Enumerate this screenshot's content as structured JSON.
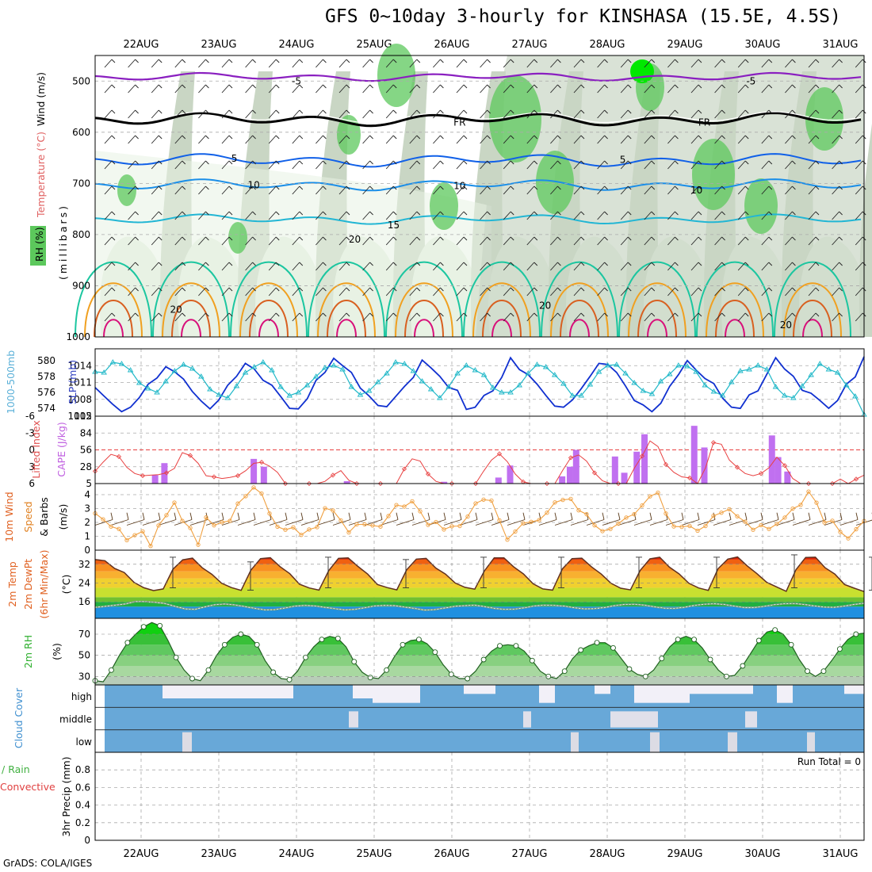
{
  "title": "GFS 0~10day 3-hourly for KINSHASA (15.5E, 4.5S)",
  "footer": "GrADS: COLA/IGES",
  "days": [
    "22AUG",
    "23AUG",
    "24AUG",
    "25AUG",
    "26AUG",
    "27AUG",
    "28AUG",
    "29AUG",
    "30AUG",
    "31AUG"
  ],
  "colors": {
    "rh_light": "#e8f2e4",
    "rh_mid": "#c9d6c4",
    "rh_green": "#5cc85c",
    "rh_bright": "#00e800",
    "t5": "#8a1fc0",
    "tfr": "#000000",
    "t_5": "#1060e8",
    "t10": "#1a8ee8",
    "t15": "#22b6d4",
    "t20": "#1cc6a0",
    "t25": "#f0a020",
    "t30": "#d86020",
    "t35": "#d8107a",
    "slp": "#1030d0",
    "thick": "#20b8c8",
    "li": "#e84040",
    "cape": "#c070f0",
    "wind": "#f0a040",
    "barb": "#5a3a1a",
    "cloud": "#68a8d8",
    "cloud_gap": "#f2f0f8",
    "rh2m": "#30c030"
  },
  "chart_data": [
    {
      "type": "heatmap",
      "name": "upper-air",
      "ylabel": "(millibars)",
      "legend": {
        "wind_label": "Wind (m/s)",
        "temp_label": "Temperature (°C)",
        "rh_label": "RH (%)"
      },
      "ylim": [
        1000,
        450
      ],
      "y_ticks": [
        "500",
        "600",
        "700",
        "800",
        "900",
        "1000"
      ],
      "contour_labels": [
        {
          "text": "-5",
          "day": 2.0,
          "p": 499
        },
        {
          "text": "-5",
          "day": 7.85,
          "p": 499
        },
        {
          "text": "FR",
          "day": 4.1,
          "p": 579
        },
        {
          "text": "FR",
          "day": 7.25,
          "p": 579
        },
        {
          "text": "5",
          "day": 1.2,
          "p": 650
        },
        {
          "text": "5",
          "day": 6.2,
          "p": 652
        },
        {
          "text": "10",
          "day": 1.45,
          "p": 702
        },
        {
          "text": "10",
          "day": 4.1,
          "p": 703
        },
        {
          "text": "10",
          "day": 7.15,
          "p": 712
        },
        {
          "text": "15",
          "day": 3.25,
          "p": 780
        },
        {
          "text": "20",
          "day": 2.75,
          "p": 808
        },
        {
          "text": "20",
          "day": 0.45,
          "p": 945
        },
        {
          "text": "20",
          "day": 5.2,
          "p": 937
        },
        {
          "text": "20",
          "day": 8.3,
          "p": 975
        }
      ]
    },
    {
      "type": "line",
      "name": "slp-thickness",
      "ylabel_left": "1000-500mb Thickness (dm)",
      "ylabel_right": "SLP (mb)",
      "left_ticks": [
        "574",
        "576",
        "578",
        "580"
      ],
      "right_ticks": [
        "1005",
        "1008",
        "1011",
        "1014"
      ],
      "ylim_slp": [
        1005,
        1017
      ],
      "ylim_thick": [
        573,
        581.5
      ],
      "series": [
        {
          "name": "SLP",
          "values": [
            1010.1,
            1008.6,
            1007.1,
            1005.8,
            1006.6,
            1008.3,
            1010.7,
            1011.8,
            1013.8,
            1012.9,
            1011.6,
            1009.4,
            1007.7,
            1006.3,
            1007.9,
            1010.5,
            1012.1,
            1014.4,
            1013.4,
            1011.4,
            1010.5,
            1008.5,
            1006.4,
            1006.3,
            1008.1,
            1011.4,
            1012.8,
            1015.3,
            1014.0,
            1012.8,
            1010.0,
            1008.6,
            1006.9,
            1006.7,
            1008.5,
            1010.3,
            1011.9,
            1015.0,
            1013.6,
            1012.1,
            1010.1,
            1009.6,
            1006.2,
            1006.6,
            1008.7,
            1009.5,
            1011.9,
            1015.4,
            1013.3,
            1012.4,
            1010.7,
            1008.7,
            1006.8,
            1006.6,
            1007.9,
            1009.9,
            1012.1,
            1014.4,
            1014.2,
            1012.8,
            1010.4,
            1007.8,
            1007.0,
            1005.8,
            1007.3,
            1010.3,
            1012.4,
            1014.9,
            1013.2,
            1011.7,
            1010.8,
            1008.2,
            1006.6,
            1006.4,
            1008.8,
            1009.5,
            1012.5,
            1015.4,
            1013.4,
            1012.1,
            1009.6,
            1009.1,
            1007.8,
            1006.4,
            1007.8,
            1010.7,
            1012.0,
            1015.6
          ]
        },
        {
          "name": "Thickness",
          "values": [
            578.6,
            578.5,
            579.8,
            579.6,
            578.8,
            577.2,
            576.5,
            576.0,
            577.4,
            578.7,
            579.5,
            579.0,
            578.0,
            576.4,
            575.7,
            575.3,
            576.8,
            578.5,
            579.2,
            579.8,
            578.8,
            576.7,
            575.6,
            576.0,
            576.9,
            578.0,
            579.1,
            579.4,
            578.9,
            576.7,
            575.7,
            576.2,
            577.3,
            578.4,
            579.8,
            579.6,
            578.7,
            577.4,
            576.4,
            575.3,
            576.7,
            578.4,
            579.4,
            578.8,
            578.2,
            576.6,
            576.0,
            576.0,
            576.9,
            578.4,
            579.5,
            579.2,
            578.2,
            577.1,
            575.6,
            575.6,
            577.0,
            578.6,
            579.4,
            579.5,
            578.4,
            577.2,
            576.2,
            575.8,
            577.4,
            578.3,
            579.4,
            579.3,
            578.6,
            576.9,
            576.1,
            575.6,
            577.3,
            578.7,
            578.9,
            579.4,
            578.9,
            576.7,
            575.6,
            575.3,
            576.8,
            578.2,
            579.6,
            578.9,
            578.5,
            576.9,
            575.5,
            573.2
          ]
        }
      ]
    },
    {
      "type": "bar",
      "name": "cape-li",
      "ylabel_left": "Lifted Index",
      "ylabel_right": "CAPE (J/kg)",
      "li_ticks": [
        "-6",
        "-3",
        "0",
        "3",
        "6"
      ],
      "cape_ticks": [
        "5",
        "28",
        "56",
        "84",
        "112"
      ],
      "ylim_cape": [
        0,
        112
      ],
      "ylim_li": [
        -6,
        6
      ],
      "series": [
        {
          "name": "Lifted Index",
          "values": [
            3.8,
            2.2,
            0.8,
            1.2,
            3.1,
            4.2,
            4.6,
            4.5,
            4.4,
            4.1,
            3.3,
            0.5,
            1.0,
            2.4,
            4.6,
            4.8,
            5.1,
            4.9,
            4.6,
            3.7,
            2.4,
            2.2,
            2.9,
            4.0,
            6.1,
            7.0,
            7.5,
            7.8,
            7.2,
            5.6,
            4.5,
            3.7,
            5.4,
            6.6,
            7.3,
            7.7,
            7.9,
            7.6,
            6.0,
            3.4,
            1.6,
            2.0,
            4.3,
            5.6,
            7.3,
            7.2,
            7.8,
            7.6,
            6.8,
            3.8,
            1.8,
            0.7,
            2.1,
            4.3,
            5.7,
            6.1,
            6.6,
            6.9,
            6.9,
            3.6,
            1.4,
            0.9,
            2.0,
            4.1,
            5.5,
            6.8,
            7.3,
            6.0,
            3.3,
            1.1,
            -1.6,
            -0.6,
            2.6,
            4.0,
            4.8,
            5.0,
            6.8,
            3.2,
            -1.3,
            -1.0,
            1.8,
            3.1,
            4.2,
            4.6,
            4.2,
            3.2,
            1.3,
            2.8,
            5.1,
            6.5,
            6.6,
            7.1,
            7.0,
            6.1,
            5.2,
            6.2,
            5.2,
            4.5
          ]
        },
        {
          "name": "CAPE",
          "values": [
            0,
            14,
            34,
            0,
            0,
            0,
            0,
            0,
            0,
            0,
            0,
            41,
            28,
            0,
            0,
            0,
            0,
            0,
            0,
            0,
            0,
            0,
            0,
            0,
            0,
            0,
            0,
            0,
            0,
            0,
            0,
            0,
            0,
            0,
            0,
            0,
            0,
            0,
            0,
            0,
            0,
            0,
            0,
            0,
            0,
            0,
            0,
            0,
            0,
            0,
            0,
            0,
            0,
            0,
            0,
            0,
            0,
            0,
            0,
            0,
            0,
            0,
            0,
            0,
            0,
            0,
            0,
            0,
            0,
            0,
            0,
            0,
            0,
            0,
            0,
            0,
            0,
            0,
            0,
            0,
            0,
            0,
            0,
            0,
            0,
            0,
            0,
            0,
            0,
            0,
            0,
            0,
            0,
            0,
            0,
            0,
            0,
            0
          ]
        }
      ]
    },
    {
      "type": "line",
      "name": "10m-wind",
      "ylabel": "10m Wind Speed & Barbs (m/s)",
      "ylim": [
        0,
        4.8
      ],
      "y_ticks": [
        "0",
        "1",
        "2",
        "3",
        "4"
      ],
      "series": [
        {
          "name": "Speed",
          "values": [
            2.65,
            2.22,
            1.7,
            1.53,
            0.72,
            1.08,
            1.35,
            0.3,
            1.78,
            2.52,
            3.43,
            2.11,
            1.6,
            0.39,
            2.36,
            1.79,
            2.01,
            2.11,
            3.36,
            3.89,
            4.52,
            4.08,
            2.64,
            1.69,
            1.47,
            1.64,
            1.1,
            1.49,
            1.66,
            3.02,
            2.86,
            2.14,
            1.28,
            1.86,
            1.86,
            1.78,
            1.7,
            2.46,
            3.25,
            3.14,
            3.52,
            2.8,
            1.82,
            2.03,
            1.49,
            1.72,
            1.74,
            2.42,
            3.37,
            3.64,
            3.57,
            2.15,
            0.76,
            1.34,
            1.94,
            2.04,
            2.16,
            2.7,
            3.44,
            3.62,
            3.69,
            2.87,
            2.59,
            1.79,
            1.37,
            1.53,
            1.91,
            2.35,
            2.59,
            3.22,
            3.88,
            4.14,
            2.64,
            1.71,
            1.68,
            1.74,
            1.4,
            1.74,
            2.47,
            2.7,
            2.95,
            2.44,
            2.05,
            1.47,
            1.8,
            1.53,
            1.89,
            2.35,
            2.99,
            3.26,
            4.22,
            3.42,
            1.99,
            2.12,
            1.31,
            0.85,
            1.51,
            2.1
          ]
        }
      ]
    },
    {
      "type": "area",
      "name": "2m-temp",
      "ylabel": "2m Temp / 2m DewPt (6hr Min/Max) (°C)",
      "ylim": [
        9,
        38
      ],
      "y_ticks": [
        "16",
        "24",
        "32"
      ],
      "series": [
        {
          "name": "Temp",
          "values": [
            34.0,
            33.5,
            30.2,
            28.5,
            24.3,
            22.0,
            20.8,
            21.5,
            29.9,
            33.9,
            34.6,
            30.5,
            27.7,
            23.9,
            22.1,
            20.9,
            29.5,
            34.4,
            34.8,
            31.0,
            28.0,
            23.5,
            21.9,
            21.0,
            29.3,
            34.5,
            34.7,
            31.1,
            27.8,
            23.4,
            22.1,
            21.1,
            29.6,
            34.2,
            34.5,
            30.4,
            27.8,
            24.0,
            22.2,
            21.4,
            29.2,
            34.7,
            34.7,
            30.9,
            27.9,
            23.7,
            21.5,
            21.0,
            30.0,
            34.4,
            34.6,
            30.9,
            27.8,
            23.9,
            21.8,
            21.1,
            29.4,
            34.3,
            35.0,
            30.8,
            27.9,
            23.9,
            21.9,
            20.9,
            30.1,
            34.2,
            35.1,
            31.3,
            28.0,
            24.3,
            22.4,
            20.5,
            29.7,
            34.9,
            35.0,
            30.5,
            27.8,
            23.4,
            21.8,
            20.4
          ]
        },
        {
          "name": "DewPt",
          "values": [
            13.7,
            14.1,
            14.6,
            15.1,
            16.1,
            16.1,
            15.8,
            15.3,
            14.1,
            13.0,
            12.8,
            13.9,
            14.8,
            15.1,
            14.7,
            14.0,
            13.2,
            12.6,
            12.7,
            13.4,
            14.2,
            14.5,
            14.3,
            13.7,
            13.1,
            12.6,
            12.8,
            13.5,
            14.3,
            14.5,
            14.4,
            13.8,
            13.2,
            12.5,
            12.7,
            13.4,
            14.1,
            14.4,
            14.6,
            14.0,
            13.2,
            12.8,
            12.9,
            13.5,
            14.3,
            14.6,
            14.5,
            14.2,
            13.5,
            13.0,
            13.1,
            13.6,
            14.4,
            14.9,
            15.0,
            14.6,
            13.9,
            13.3,
            13.2,
            13.7,
            14.5,
            15.0,
            15.2,
            14.9,
            14.2,
            13.6,
            13.6,
            14.1,
            14.8,
            15.2,
            15.3,
            14.9,
            14.3,
            13.8,
            13.7,
            14.2,
            14.9,
            15.4
          ]
        },
        {
          "name": "Max",
          "values": [
            35,
            33,
            35,
            34,
            35,
            35,
            35,
            35,
            36,
            35
          ]
        },
        {
          "name": "Min",
          "values": [
            22,
            21,
            22,
            22,
            22,
            22,
            22,
            22,
            22,
            21
          ]
        }
      ]
    },
    {
      "type": "area",
      "name": "2m-rh",
      "ylabel": "2m RH (%)",
      "ylim": [
        22,
        85
      ],
      "y_ticks": [
        "30",
        "50",
        "70"
      ],
      "series": [
        {
          "name": "RH",
          "values": [
            26,
            25,
            36,
            50,
            62,
            70,
            77,
            81,
            78,
            64,
            48,
            36,
            28,
            26,
            36,
            50,
            60,
            67,
            70,
            68,
            60,
            45,
            34,
            28,
            27,
            35,
            48,
            58,
            65,
            68,
            66,
            58,
            44,
            34,
            29,
            28,
            36,
            49,
            60,
            64,
            65,
            61,
            53,
            41,
            32,
            28,
            28,
            35,
            46,
            54,
            59,
            60,
            59,
            54,
            45,
            35,
            30,
            28,
            35,
            47,
            55,
            59,
            62,
            62,
            57,
            47,
            37,
            32,
            30,
            36,
            47,
            58,
            65,
            68,
            65,
            57,
            46,
            36,
            30,
            31,
            40,
            52,
            64,
            72,
            74,
            70,
            60,
            46,
            35,
            30,
            35,
            45,
            56,
            65,
            70,
            71
          ]
        }
      ]
    },
    {
      "type": "bar",
      "name": "cloud-cover",
      "ylabel": "Cloud Cover (%)",
      "levels": [
        "high",
        "middle",
        "low"
      ]
    },
    {
      "type": "bar",
      "name": "precip",
      "ylabel_left": "Total / Rain Convective",
      "ylabel": "3hr Precip (mm)",
      "ylim": [
        0,
        1
      ],
      "y_ticks": [
        "0",
        "0.2",
        "0.4",
        "0.6",
        "0.8"
      ],
      "run_total_label": "Run Total = 0",
      "values": []
    }
  ]
}
